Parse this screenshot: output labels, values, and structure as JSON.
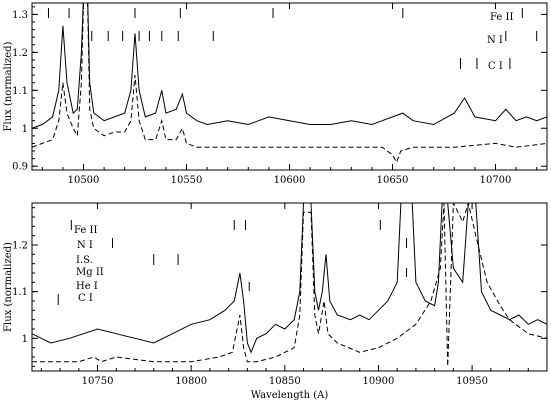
{
  "chart_data": [
    {
      "type": "line",
      "panel": "top",
      "xlim": [
        10475,
        10725
      ],
      "ylim": [
        0.89,
        1.33
      ],
      "xticks": [
        10500,
        10550,
        10600,
        10650,
        10700
      ],
      "yticks": [
        0.9,
        1.0,
        1.1,
        1.2,
        1.3
      ],
      "ytick_labels": [
        "0.9",
        "1",
        "1.1",
        "1.2",
        "1.3"
      ],
      "ylabel": "Flux (normalized)",
      "xlabel": "",
      "grid": false,
      "series": [
        {
          "style": "solid",
          "points": [
            [
              10475,
              1.0
            ],
            [
              10480,
              1.01
            ],
            [
              10485,
              1.03
            ],
            [
              10488,
              1.1
            ],
            [
              10490,
              1.27
            ],
            [
              10492,
              1.12
            ],
            [
              10495,
              1.04
            ],
            [
              10497,
              1.05
            ],
            [
              10499,
              1.2
            ],
            [
              10500,
              1.35
            ],
            [
              10502,
              1.35
            ],
            [
              10503,
              1.12
            ],
            [
              10505,
              1.04
            ],
            [
              10510,
              1.02
            ],
            [
              10515,
              1.03
            ],
            [
              10520,
              1.04
            ],
            [
              10523,
              1.1
            ],
            [
              10525,
              1.25
            ],
            [
              10527,
              1.1
            ],
            [
              10530,
              1.03
            ],
            [
              10535,
              1.04
            ],
            [
              10538,
              1.1
            ],
            [
              10540,
              1.04
            ],
            [
              10545,
              1.05
            ],
            [
              10548,
              1.09
            ],
            [
              10550,
              1.04
            ],
            [
              10555,
              1.02
            ],
            [
              10560,
              1.01
            ],
            [
              10570,
              1.02
            ],
            [
              10580,
              1.01
            ],
            [
              10590,
              1.03
            ],
            [
              10600,
              1.02
            ],
            [
              10610,
              1.01
            ],
            [
              10620,
              1.01
            ],
            [
              10630,
              1.02
            ],
            [
              10640,
              1.01
            ],
            [
              10650,
              1.03
            ],
            [
              10655,
              1.04
            ],
            [
              10660,
              1.02
            ],
            [
              10670,
              1.01
            ],
            [
              10680,
              1.04
            ],
            [
              10685,
              1.08
            ],
            [
              10690,
              1.03
            ],
            [
              10700,
              1.02
            ],
            [
              10705,
              1.05
            ],
            [
              10710,
              1.02
            ],
            [
              10715,
              1.03
            ],
            [
              10720,
              1.02
            ],
            [
              10725,
              1.03
            ]
          ]
        },
        {
          "style": "dashed",
          "points": [
            [
              10475,
              0.95
            ],
            [
              10480,
              0.96
            ],
            [
              10485,
              0.97
            ],
            [
              10488,
              1.02
            ],
            [
              10490,
              1.12
            ],
            [
              10492,
              1.04
            ],
            [
              10495,
              1.0
            ],
            [
              10497,
              0.98
            ],
            [
              10499,
              1.12
            ],
            [
              10500,
              1.33
            ],
            [
              10502,
              1.33
            ],
            [
              10503,
              1.05
            ],
            [
              10505,
              1.0
            ],
            [
              10510,
              0.98
            ],
            [
              10515,
              0.99
            ],
            [
              10520,
              0.99
            ],
            [
              10523,
              1.02
            ],
            [
              10525,
              1.14
            ],
            [
              10527,
              1.02
            ],
            [
              10530,
              0.97
            ],
            [
              10535,
              0.97
            ],
            [
              10538,
              1.02
            ],
            [
              10540,
              0.97
            ],
            [
              10545,
              0.97
            ],
            [
              10548,
              1.0
            ],
            [
              10550,
              0.96
            ],
            [
              10555,
              0.95
            ],
            [
              10570,
              0.95
            ],
            [
              10600,
              0.95
            ],
            [
              10630,
              0.95
            ],
            [
              10645,
              0.95
            ],
            [
              10650,
              0.93
            ],
            [
              10652,
              0.91
            ],
            [
              10654,
              0.94
            ],
            [
              10660,
              0.95
            ],
            [
              10680,
              0.95
            ],
            [
              10700,
              0.96
            ],
            [
              10710,
              0.95
            ],
            [
              10725,
              0.96
            ]
          ]
        }
      ],
      "line_ids": [
        {
          "label": "Fe II",
          "x": [
            10483,
            10493,
            10525,
            10547,
            10592,
            10655,
            10713
          ]
        },
        {
          "label": "N I",
          "x": [
            10504,
            10512,
            10519,
            10527,
            10532,
            10538,
            10546,
            10563,
            10705,
            10720
          ]
        },
        {
          "label": "C I",
          "x": [
            10683,
            10691,
            10707
          ]
        }
      ]
    },
    {
      "type": "line",
      "panel": "bottom",
      "xlim": [
        10715,
        10990
      ],
      "ylim": [
        0.93,
        1.29
      ],
      "xticks": [
        10750,
        10800,
        10850,
        10900,
        10950
      ],
      "yticks": [
        1.0,
        1.1,
        1.2
      ],
      "ytick_labels": [
        "1",
        "1.1",
        "1.2"
      ],
      "ylabel": "Flux (normalized)",
      "xlabel": "Wavelength (A)",
      "grid": false,
      "series": [
        {
          "style": "solid",
          "points": [
            [
              10715,
              1.01
            ],
            [
              10725,
              0.99
            ],
            [
              10735,
              1.0
            ],
            [
              10750,
              1.02
            ],
            [
              10760,
              1.01
            ],
            [
              10770,
              1.0
            ],
            [
              10780,
              0.99
            ],
            [
              10790,
              1.01
            ],
            [
              10800,
              1.03
            ],
            [
              10810,
              1.04
            ],
            [
              10818,
              1.06
            ],
            [
              10823,
              1.08
            ],
            [
              10826,
              1.14
            ],
            [
              10828,
              1.08
            ],
            [
              10830,
              0.99
            ],
            [
              10832,
              0.97
            ],
            [
              10835,
              1.0
            ],
            [
              10840,
              1.01
            ],
            [
              10845,
              1.03
            ],
            [
              10850,
              1.02
            ],
            [
              10855,
              1.04
            ],
            [
              10858,
              1.1
            ],
            [
              10860,
              1.29
            ],
            [
              10864,
              1.29
            ],
            [
              10866,
              1.1
            ],
            [
              10868,
              1.06
            ],
            [
              10870,
              1.1
            ],
            [
              10872,
              1.18
            ],
            [
              10874,
              1.08
            ],
            [
              10878,
              1.05
            ],
            [
              10885,
              1.04
            ],
            [
              10890,
              1.05
            ],
            [
              10895,
              1.04
            ],
            [
              10900,
              1.06
            ],
            [
              10905,
              1.08
            ],
            [
              10910,
              1.12
            ],
            [
              10912,
              1.29
            ],
            [
              10918,
              1.29
            ],
            [
              10920,
              1.12
            ],
            [
              10925,
              1.08
            ],
            [
              10930,
              1.07
            ],
            [
              10932,
              1.12
            ],
            [
              10934,
              1.29
            ],
            [
              10937,
              1.29
            ],
            [
              10940,
              1.15
            ],
            [
              10945,
              1.12
            ],
            [
              10948,
              1.29
            ],
            [
              10952,
              1.29
            ],
            [
              10955,
              1.1
            ],
            [
              10960,
              1.06
            ],
            [
              10965,
              1.05
            ],
            [
              10970,
              1.04
            ],
            [
              10975,
              1.05
            ],
            [
              10980,
              1.03
            ],
            [
              10985,
              1.04
            ],
            [
              10990,
              1.03
            ]
          ]
        },
        {
          "style": "dashed",
          "points": [
            [
              10715,
              0.95
            ],
            [
              10740,
              0.95
            ],
            [
              10748,
              0.96
            ],
            [
              10752,
              0.95
            ],
            [
              10760,
              0.96
            ],
            [
              10780,
              0.95
            ],
            [
              10800,
              0.95
            ],
            [
              10815,
              0.96
            ],
            [
              10822,
              0.97
            ],
            [
              10826,
              1.05
            ],
            [
              10828,
              0.98
            ],
            [
              10830,
              0.95
            ],
            [
              10835,
              0.95
            ],
            [
              10845,
              0.96
            ],
            [
              10855,
              0.98
            ],
            [
              10858,
              1.05
            ],
            [
              10860,
              1.27
            ],
            [
              10864,
              1.27
            ],
            [
              10866,
              1.05
            ],
            [
              10868,
              1.01
            ],
            [
              10871,
              1.08
            ],
            [
              10873,
              1.01
            ],
            [
              10878,
              0.99
            ],
            [
              10890,
              0.97
            ],
            [
              10900,
              0.98
            ],
            [
              10910,
              1.0
            ],
            [
              10920,
              1.03
            ],
            [
              10928,
              1.08
            ],
            [
              10933,
              1.15
            ],
            [
              10935,
              1.29
            ],
            [
              10937,
              0.94
            ],
            [
              10940,
              1.29
            ],
            [
              10945,
              1.25
            ],
            [
              10948,
              1.29
            ],
            [
              10952,
              1.22
            ],
            [
              10958,
              1.12
            ],
            [
              10965,
              1.07
            ],
            [
              10970,
              1.04
            ],
            [
              10980,
              1.01
            ],
            [
              10990,
              1.0
            ]
          ]
        }
      ],
      "line_ids": [
        {
          "label": "Fe II",
          "x": [
            10736,
            10823,
            10829,
            10901
          ]
        },
        {
          "label": "N I",
          "x": [
            10758,
            10915
          ]
        },
        {
          "label": "I.S.",
          "x": [
            10780,
            10793
          ]
        },
        {
          "label": "Mg II",
          "x": [
            10915
          ]
        },
        {
          "label": "He I",
          "x": [
            10831
          ]
        },
        {
          "label": "C I",
          "x": [
            10729
          ]
        }
      ]
    }
  ]
}
